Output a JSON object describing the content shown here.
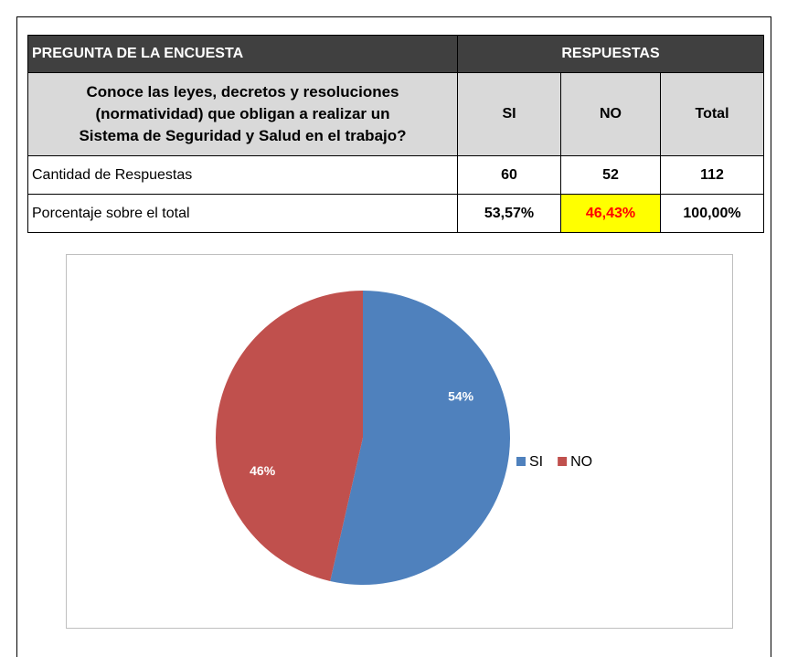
{
  "table": {
    "header": [
      "PREGUNTA DE LA ENCUESTA",
      "RESPUESTAS"
    ],
    "question": [
      "Conoce las leyes, decretos y resoluciones",
      "(normatividad) que obligan a realizar un",
      "Sistema de Seguridad y Salud en el trabajo?"
    ],
    "columns": [
      "SI",
      "NO",
      "Total"
    ],
    "rows": [
      [
        "Cantidad de Respuestas",
        "60",
        "52",
        "112"
      ],
      [
        "Porcentaje sobre el total",
        "53,57%",
        "46,43%",
        "100,00%"
      ]
    ]
  },
  "chart_data": {
    "type": "pie",
    "categories": [
      "SI",
      "NO"
    ],
    "values": [
      53.57,
      46.43
    ],
    "value_labels": [
      "54%",
      "46%"
    ],
    "colors": [
      "#4f81bd",
      "#c0504d"
    ],
    "legend": "right"
  }
}
